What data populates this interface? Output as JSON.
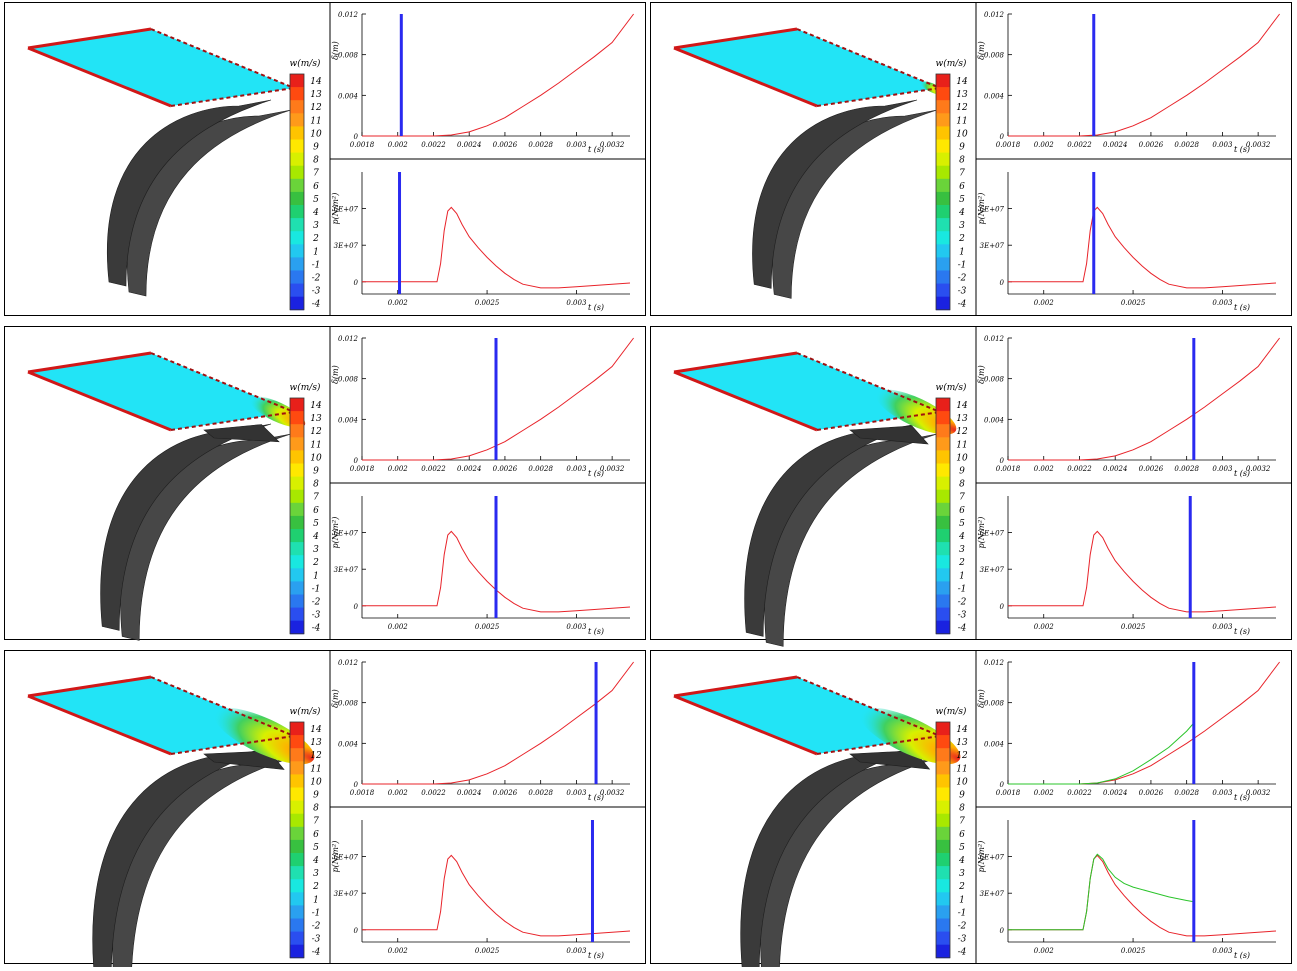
{
  "colorbar": {
    "title": "w(m/s)",
    "ticks": [
      "14",
      "13",
      "12",
      "11",
      "10",
      "9",
      "8",
      "7",
      "6",
      "5",
      "4",
      "3",
      "2",
      "1",
      "-1",
      "-2",
      "-3",
      "-4"
    ],
    "colors": [
      "#e8201a",
      "#ff4a10",
      "#ff7a1a",
      "#ff9a1a",
      "#ffc400",
      "#ffe800",
      "#d8f000",
      "#a8e800",
      "#6ad43a",
      "#38c040",
      "#1fd070",
      "#1fe0b0",
      "#19e8e0",
      "#22c8f0",
      "#2aa0f0",
      "#2a78f0",
      "#2a4ef0",
      "#1a22e0"
    ]
  },
  "chart_data": [
    {
      "type": "line",
      "panel": "panel-1-top",
      "ylabel": "δ(m)",
      "xlabel": "t (s)",
      "xlim": [
        0.0018,
        0.0033
      ],
      "ylim": [
        0,
        0.012
      ],
      "xticks": [
        0.0018,
        0.002,
        0.0022,
        0.0024,
        0.0026,
        0.0028,
        0.003,
        0.0032
      ],
      "xtick_labels": [
        "0.0018",
        "0.002",
        "0.0022",
        "0.0024",
        "0.0026",
        "0.0028",
        "0.003",
        "0.0032"
      ],
      "yticks": [
        0,
        0.004,
        0.008,
        0.012
      ],
      "ytick_labels": [
        "0",
        "0.004",
        "0.008",
        "0.012"
      ],
      "series": [
        {
          "color": "#e8232a",
          "x": [
            0.0018,
            0.0022,
            0.0023,
            0.0024,
            0.0025,
            0.0026,
            0.0027,
            0.0028,
            0.0029,
            0.003,
            0.0031,
            0.0032,
            0.00332
          ],
          "values": [
            0,
            0,
            0.0001,
            0.0004,
            0.001,
            0.0018,
            0.0029,
            0.004,
            0.0052,
            0.0065,
            0.0078,
            0.0092,
            0.012
          ]
        }
      ],
      "marker_x": 0.00202
    },
    {
      "type": "line",
      "panel": "panel-1-bottom",
      "ylabel": "p(N/m²)",
      "xlabel": "t (s)",
      "xlim": [
        0.0018,
        0.0033
      ],
      "ylim": [
        -10000000,
        90000000
      ],
      "xticks": [
        0.002,
        0.0025,
        0.003
      ],
      "xtick_labels": [
        "0.002",
        "0.0025",
        "0.003"
      ],
      "yticks": [
        0,
        30000000,
        60000000
      ],
      "ytick_labels": [
        "0",
        "3E+07",
        "6E+07"
      ],
      "series": [
        {
          "color": "#e8232a",
          "x": [
            0.0018,
            0.00222,
            0.00224,
            0.00226,
            0.00228,
            0.0023,
            0.00233,
            0.00236,
            0.0024,
            0.00245,
            0.0025,
            0.00255,
            0.0026,
            0.00265,
            0.0027,
            0.0028,
            0.0029,
            0.003,
            0.0031,
            0.0032,
            0.0033
          ],
          "values": [
            0,
            0,
            15000000,
            42000000,
            58000000,
            61000000,
            56000000,
            47000000,
            37000000,
            28000000,
            20000000,
            13000000,
            7000000,
            2000000,
            -2000000,
            -5000000,
            -5000000,
            -4000000,
            -3000000,
            -2000000,
            -1000000
          ]
        }
      ],
      "marker_x": 0.00201
    },
    {
      "type": "line",
      "panel": "panel-2-top",
      "ylabel": "δ(m)",
      "xlabel": "t (s)",
      "xlim": [
        0.0018,
        0.0033
      ],
      "ylim": [
        0,
        0.012
      ],
      "xticks": [
        0.0018,
        0.002,
        0.0022,
        0.0024,
        0.0026,
        0.0028,
        0.003,
        0.0032
      ],
      "xtick_labels": [
        "0.0018",
        "0.002",
        "0.0022",
        "0.0024",
        "0.0026",
        "0.0028",
        "0.003",
        "0.0032"
      ],
      "yticks": [
        0,
        0.004,
        0.008,
        0.012
      ],
      "ytick_labels": [
        "0",
        "0.004",
        "0.008",
        "0.012"
      ],
      "series": [
        {
          "color": "#e8232a",
          "x": [
            0.0018,
            0.0022,
            0.0023,
            0.0024,
            0.0025,
            0.0026,
            0.0027,
            0.0028,
            0.0029,
            0.003,
            0.0031,
            0.0032,
            0.00332
          ],
          "values": [
            0,
            0,
            0.0001,
            0.0004,
            0.001,
            0.0018,
            0.0029,
            0.004,
            0.0052,
            0.0065,
            0.0078,
            0.0092,
            0.012
          ]
        }
      ],
      "marker_x": 0.00228
    },
    {
      "type": "line",
      "panel": "panel-2-bottom",
      "ylabel": "p(N/m²)",
      "xlabel": "t (s)",
      "xlim": [
        0.0018,
        0.0033
      ],
      "ylim": [
        -10000000,
        90000000
      ],
      "xticks": [
        0.002,
        0.0025,
        0.003
      ],
      "xtick_labels": [
        "0.002",
        "0.0025",
        "0.003"
      ],
      "yticks": [
        0,
        30000000,
        60000000
      ],
      "ytick_labels": [
        "0",
        "3E+07",
        "6E+07"
      ],
      "series": [
        {
          "color": "#e8232a",
          "x": [
            0.0018,
            0.00222,
            0.00224,
            0.00226,
            0.00228,
            0.0023,
            0.00233,
            0.00236,
            0.0024,
            0.00245,
            0.0025,
            0.00255,
            0.0026,
            0.00265,
            0.0027,
            0.0028,
            0.0029,
            0.003,
            0.0031,
            0.0032,
            0.0033
          ],
          "values": [
            0,
            0,
            15000000,
            42000000,
            58000000,
            61000000,
            56000000,
            47000000,
            37000000,
            28000000,
            20000000,
            13000000,
            7000000,
            2000000,
            -2000000,
            -5000000,
            -5000000,
            -4000000,
            -3000000,
            -2000000,
            -1000000
          ]
        }
      ],
      "marker_x": 0.00228
    },
    {
      "type": "line",
      "panel": "panel-3-top",
      "ylabel": "δ(m)",
      "xlabel": "t (s)",
      "xlim": [
        0.0018,
        0.0033
      ],
      "ylim": [
        0,
        0.012
      ],
      "xticks": [
        0.0018,
        0.002,
        0.0022,
        0.0024,
        0.0026,
        0.0028,
        0.003,
        0.0032
      ],
      "xtick_labels": [
        "0.0018",
        "0.002",
        "0.0022",
        "0.0024",
        "0.0026",
        "0.0028",
        "0.003",
        "0.0032"
      ],
      "yticks": [
        0,
        0.004,
        0.008,
        0.012
      ],
      "ytick_labels": [
        "0",
        "0.004",
        "0.008",
        "0.012"
      ],
      "series": [
        {
          "color": "#e8232a",
          "x": [
            0.0018,
            0.0022,
            0.0023,
            0.0024,
            0.0025,
            0.0026,
            0.0027,
            0.0028,
            0.0029,
            0.003,
            0.0031,
            0.0032,
            0.00332
          ],
          "values": [
            0,
            0,
            0.0001,
            0.0004,
            0.001,
            0.0018,
            0.0029,
            0.004,
            0.0052,
            0.0065,
            0.0078,
            0.0092,
            0.012
          ]
        }
      ],
      "marker_x": 0.00255
    },
    {
      "type": "line",
      "panel": "panel-3-bottom",
      "ylabel": "p(N/m²)",
      "xlabel": "t (s)",
      "xlim": [
        0.0018,
        0.0033
      ],
      "ylim": [
        -10000000,
        90000000
      ],
      "xticks": [
        0.002,
        0.0025,
        0.003
      ],
      "xtick_labels": [
        "0.002",
        "0.0025",
        "0.003"
      ],
      "yticks": [
        0,
        30000000,
        60000000
      ],
      "ytick_labels": [
        "0",
        "3E+07",
        "6E+07"
      ],
      "series": [
        {
          "color": "#e8232a",
          "x": [
            0.0018,
            0.00222,
            0.00224,
            0.00226,
            0.00228,
            0.0023,
            0.00233,
            0.00236,
            0.0024,
            0.00245,
            0.0025,
            0.00255,
            0.0026,
            0.00265,
            0.0027,
            0.0028,
            0.0029,
            0.003,
            0.0031,
            0.0032,
            0.0033
          ],
          "values": [
            0,
            0,
            15000000,
            42000000,
            58000000,
            61000000,
            56000000,
            47000000,
            37000000,
            28000000,
            20000000,
            13000000,
            7000000,
            2000000,
            -2000000,
            -5000000,
            -5000000,
            -4000000,
            -3000000,
            -2000000,
            -1000000
          ]
        }
      ],
      "marker_x": 0.00255
    },
    {
      "type": "line",
      "panel": "panel-4-top",
      "ylabel": "δ(m)",
      "xlabel": "t (s)",
      "xlim": [
        0.0018,
        0.0033
      ],
      "ylim": [
        0,
        0.012
      ],
      "xticks": [
        0.0018,
        0.002,
        0.0022,
        0.0024,
        0.0026,
        0.0028,
        0.003,
        0.0032
      ],
      "xtick_labels": [
        "0.0018",
        "0.002",
        "0.0022",
        "0.0024",
        "0.0026",
        "0.0028",
        "0.003",
        "0.0032"
      ],
      "yticks": [
        0,
        0.004,
        0.008,
        0.012
      ],
      "ytick_labels": [
        "0",
        "0.004",
        "0.008",
        "0.012"
      ],
      "series": [
        {
          "color": "#e8232a",
          "x": [
            0.0018,
            0.0022,
            0.0023,
            0.0024,
            0.0025,
            0.0026,
            0.0027,
            0.0028,
            0.0029,
            0.003,
            0.0031,
            0.0032,
            0.00332
          ],
          "values": [
            0,
            0,
            0.0001,
            0.0004,
            0.001,
            0.0018,
            0.0029,
            0.004,
            0.0052,
            0.0065,
            0.0078,
            0.0092,
            0.012
          ]
        }
      ],
      "marker_x": 0.00284
    },
    {
      "type": "line",
      "panel": "panel-4-bottom",
      "ylabel": "p(N/m²)",
      "xlabel": "t (s)",
      "xlim": [
        0.0018,
        0.0033
      ],
      "ylim": [
        -10000000,
        90000000
      ],
      "xticks": [
        0.002,
        0.0025,
        0.003
      ],
      "xtick_labels": [
        "0.002",
        "0.0025",
        "0.003"
      ],
      "yticks": [
        0,
        30000000,
        60000000
      ],
      "ytick_labels": [
        "0",
        "3E+07",
        "6E+07"
      ],
      "series": [
        {
          "color": "#e8232a",
          "x": [
            0.0018,
            0.00222,
            0.00224,
            0.00226,
            0.00228,
            0.0023,
            0.00233,
            0.00236,
            0.0024,
            0.00245,
            0.0025,
            0.00255,
            0.0026,
            0.00265,
            0.0027,
            0.0028,
            0.0029,
            0.003,
            0.0031,
            0.0032,
            0.0033
          ],
          "values": [
            0,
            0,
            15000000,
            42000000,
            58000000,
            61000000,
            56000000,
            47000000,
            37000000,
            28000000,
            20000000,
            13000000,
            7000000,
            2000000,
            -2000000,
            -5000000,
            -5000000,
            -4000000,
            -3000000,
            -2000000,
            -1000000
          ]
        }
      ],
      "marker_x": 0.00282
    },
    {
      "type": "line",
      "panel": "panel-5-top",
      "ylabel": "δ(m)",
      "xlabel": "t (s)",
      "xlim": [
        0.0018,
        0.0033
      ],
      "ylim": [
        0,
        0.012
      ],
      "xticks": [
        0.0018,
        0.002,
        0.0022,
        0.0024,
        0.0026,
        0.0028,
        0.003,
        0.0032
      ],
      "xtick_labels": [
        "0.0018",
        "0.002",
        "0.0022",
        "0.0024",
        "0.0026",
        "0.0028",
        "0.003",
        "0.0032"
      ],
      "yticks": [
        0,
        0.004,
        0.008,
        0.012
      ],
      "ytick_labels": [
        "0",
        "0.004",
        "0.008",
        "0.012"
      ],
      "series": [
        {
          "color": "#e8232a",
          "x": [
            0.0018,
            0.0022,
            0.0023,
            0.0024,
            0.0025,
            0.0026,
            0.0027,
            0.0028,
            0.0029,
            0.003,
            0.0031,
            0.0032,
            0.00332
          ],
          "values": [
            0,
            0,
            0.0001,
            0.0004,
            0.001,
            0.0018,
            0.0029,
            0.004,
            0.0052,
            0.0065,
            0.0078,
            0.0092,
            0.012
          ]
        }
      ],
      "marker_x": 0.00311
    },
    {
      "type": "line",
      "panel": "panel-5-bottom",
      "ylabel": "p(N/m²)",
      "xlabel": "t (s)",
      "xlim": [
        0.0018,
        0.0033
      ],
      "ylim": [
        -10000000,
        90000000
      ],
      "xticks": [
        0.002,
        0.0025,
        0.003
      ],
      "xtick_labels": [
        "0.002",
        "0.0025",
        "0.003"
      ],
      "yticks": [
        0,
        30000000,
        60000000
      ],
      "ytick_labels": [
        "0",
        "3E+07",
        "6E+07"
      ],
      "series": [
        {
          "color": "#e8232a",
          "x": [
            0.0018,
            0.00222,
            0.00224,
            0.00226,
            0.00228,
            0.0023,
            0.00233,
            0.00236,
            0.0024,
            0.00245,
            0.0025,
            0.00255,
            0.0026,
            0.00265,
            0.0027,
            0.0028,
            0.0029,
            0.003,
            0.0031,
            0.0032,
            0.0033
          ],
          "values": [
            0,
            0,
            15000000,
            42000000,
            58000000,
            61000000,
            56000000,
            47000000,
            37000000,
            28000000,
            20000000,
            13000000,
            7000000,
            2000000,
            -2000000,
            -5000000,
            -5000000,
            -4000000,
            -3000000,
            -2000000,
            -1000000
          ]
        }
      ],
      "marker_x": 0.00309
    },
    {
      "type": "line",
      "panel": "panel-6-top",
      "ylabel": "δ(m)",
      "xlabel": "t (s)",
      "xlim": [
        0.0018,
        0.0033
      ],
      "ylim": [
        0,
        0.012
      ],
      "xticks": [
        0.0018,
        0.002,
        0.0022,
        0.0024,
        0.0026,
        0.0028,
        0.003,
        0.0032
      ],
      "xtick_labels": [
        "0.0018",
        "0.002",
        "0.0022",
        "0.0024",
        "0.0026",
        "0.0028",
        "0.003",
        "0.0032"
      ],
      "yticks": [
        0,
        0.004,
        0.008,
        0.012
      ],
      "ytick_labels": [
        "0",
        "0.004",
        "0.008",
        "0.012"
      ],
      "series": [
        {
          "color": "#e8232a",
          "x": [
            0.0018,
            0.0022,
            0.0023,
            0.0024,
            0.0025,
            0.0026,
            0.0027,
            0.0028,
            0.0029,
            0.003,
            0.0031,
            0.0032,
            0.00332
          ],
          "values": [
            0,
            0,
            0.0001,
            0.0004,
            0.001,
            0.0018,
            0.0029,
            0.004,
            0.0052,
            0.0065,
            0.0078,
            0.0092,
            0.012
          ]
        },
        {
          "color": "#2ac42a",
          "x": [
            0.0018,
            0.0022,
            0.0023,
            0.0024,
            0.0025,
            0.0026,
            0.0027,
            0.0028,
            0.00284
          ],
          "values": [
            0,
            0,
            0.0001,
            0.0005,
            0.0013,
            0.0024,
            0.0036,
            0.0052,
            0.006
          ]
        }
      ],
      "marker_x": 0.00284
    },
    {
      "type": "line",
      "panel": "panel-6-bottom",
      "ylabel": "p(N/m²)",
      "xlabel": "t (s)",
      "xlim": [
        0.0018,
        0.0033
      ],
      "ylim": [
        -10000000,
        90000000
      ],
      "xticks": [
        0.002,
        0.0025,
        0.003
      ],
      "xtick_labels": [
        "0.002",
        "0.0025",
        "0.003"
      ],
      "yticks": [
        0,
        30000000,
        60000000
      ],
      "ytick_labels": [
        "0",
        "3E+07",
        "6E+07"
      ],
      "series": [
        {
          "color": "#e8232a",
          "x": [
            0.0018,
            0.00222,
            0.00224,
            0.00226,
            0.00228,
            0.0023,
            0.00233,
            0.00236,
            0.0024,
            0.00245,
            0.0025,
            0.00255,
            0.0026,
            0.00265,
            0.0027,
            0.0028,
            0.0029,
            0.003,
            0.0031,
            0.0032,
            0.0033
          ],
          "values": [
            0,
            0,
            15000000,
            42000000,
            58000000,
            61000000,
            56000000,
            47000000,
            37000000,
            28000000,
            20000000,
            13000000,
            7000000,
            2000000,
            -2000000,
            -5000000,
            -5000000,
            -4000000,
            -3000000,
            -2000000,
            -1000000
          ]
        },
        {
          "color": "#2ac42a",
          "x": [
            0.0018,
            0.00222,
            0.00224,
            0.00226,
            0.00228,
            0.0023,
            0.00233,
            0.00236,
            0.0024,
            0.00245,
            0.0025,
            0.0026,
            0.0027,
            0.0028,
            0.00284
          ],
          "values": [
            0,
            0,
            15000000,
            42000000,
            58000000,
            62000000,
            58000000,
            50000000,
            43000000,
            38000000,
            35000000,
            31000000,
            27000000,
            24000000,
            23000000
          ]
        }
      ],
      "marker_x": 0.00284
    }
  ]
}
